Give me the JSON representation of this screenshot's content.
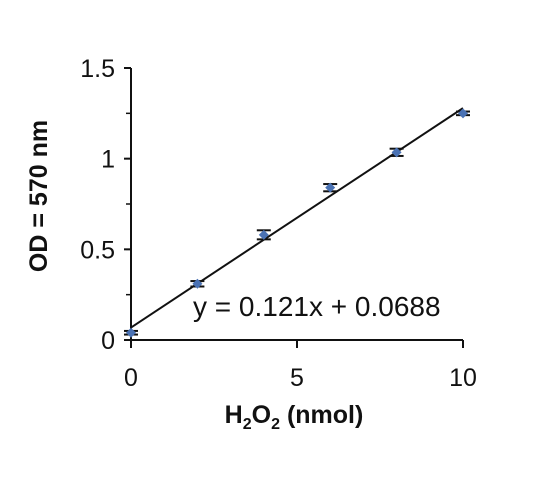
{
  "chart_data": {
    "type": "scatter",
    "x": [
      0,
      2,
      4,
      6,
      8,
      10
    ],
    "y": [
      0.04,
      0.31,
      0.58,
      0.84,
      1.035,
      1.25
    ],
    "error": [
      0.01,
      0.015,
      0.025,
      0.02,
      0.02,
      0.01
    ],
    "xlim": [
      0,
      10
    ],
    "ylim": [
      0,
      1.5
    ],
    "xticks": [
      "0",
      "5",
      "10"
    ],
    "yticks": [
      "0",
      "0.5",
      "1",
      "1.5"
    ],
    "ylabel": "OD = 570 nm",
    "xlabel": {
      "main": "H",
      "sub1": "2",
      "mid": "O",
      "sub2": "2",
      "rest": " (nmol)"
    },
    "trendline": {
      "slope": 0.121,
      "intercept": 0.0688,
      "equation": "y = 0.121x + 0.0688"
    },
    "marker_color": "#4a72b4",
    "line_color": "#111111",
    "grid": false,
    "legend": "none"
  }
}
